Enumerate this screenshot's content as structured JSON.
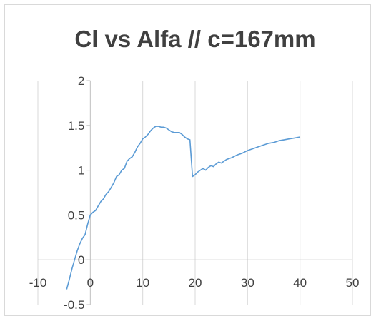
{
  "chart_data": {
    "type": "scatter",
    "title": "Cl vs Alfa // c=167mm",
    "xlabel": "",
    "ylabel": "",
    "xlim": [
      -10,
      50
    ],
    "ylim": [
      -0.5,
      2
    ],
    "x_ticks": [
      "-10",
      "0",
      "10",
      "20",
      "30",
      "40",
      "50"
    ],
    "y_ticks": [
      "-0.5",
      "0",
      "0.5",
      "1",
      "1.5",
      "2"
    ],
    "grid": "vertical",
    "legend": "none",
    "series_color": "#5b9bd5",
    "series": [
      {
        "x": [
          -4.5,
          -4,
          -3.5,
          -3,
          -2.5,
          -2,
          -1.5,
          -1,
          -0.5,
          0,
          0.5,
          1,
          1.5,
          2,
          2.5,
          3,
          3.5,
          4,
          4.5,
          5,
          5.5,
          6,
          6.5,
          7,
          7.5,
          8,
          8.5,
          9,
          9.5,
          10,
          10.5,
          11,
          11.5,
          12,
          12.5,
          13,
          13.5,
          14,
          14.5,
          15,
          15.5,
          16,
          16.5,
          17,
          17.5,
          18,
          18.5,
          19,
          19.5,
          20,
          20.5,
          21,
          21.5,
          22,
          22.5,
          23,
          23.5,
          24,
          24.5,
          25,
          25.5,
          26,
          27,
          28,
          29,
          30,
          31,
          32,
          33,
          34,
          35,
          36,
          37,
          38,
          39,
          40
        ],
        "y": [
          -0.33,
          -0.22,
          -0.1,
          0.0,
          0.1,
          0.18,
          0.24,
          0.28,
          0.4,
          0.5,
          0.53,
          0.55,
          0.6,
          0.65,
          0.68,
          0.73,
          0.76,
          0.81,
          0.86,
          0.93,
          0.95,
          1.0,
          1.02,
          1.1,
          1.13,
          1.15,
          1.2,
          1.26,
          1.3,
          1.35,
          1.37,
          1.4,
          1.44,
          1.47,
          1.49,
          1.49,
          1.48,
          1.48,
          1.47,
          1.45,
          1.43,
          1.42,
          1.42,
          1.42,
          1.4,
          1.37,
          1.35,
          1.34,
          0.93,
          0.95,
          0.98,
          1.0,
          1.02,
          1.0,
          1.03,
          1.05,
          1.04,
          1.07,
          1.09,
          1.08,
          1.1,
          1.12,
          1.14,
          1.17,
          1.19,
          1.22,
          1.24,
          1.26,
          1.28,
          1.3,
          1.31,
          1.33,
          1.34,
          1.35,
          1.36,
          1.37
        ]
      }
    ]
  }
}
